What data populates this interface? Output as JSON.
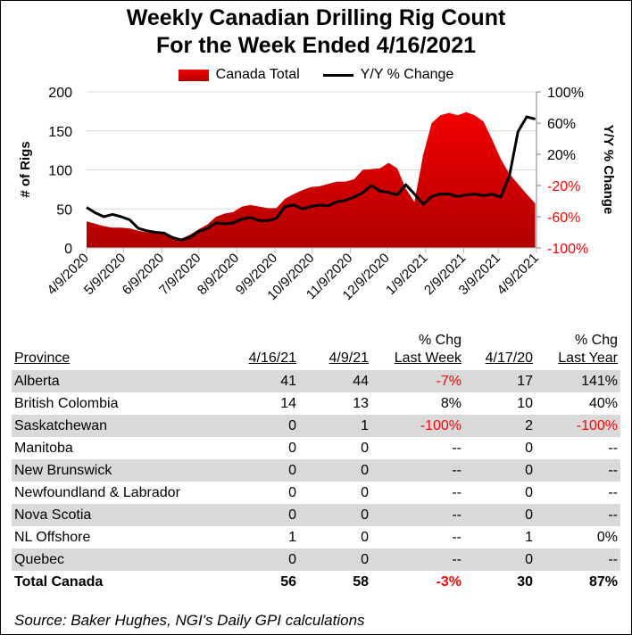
{
  "title_line1": "Weekly Canadian Drilling Rig Count",
  "title_line2": "For the Week Ended 4/16/2021",
  "chart_data": {
    "type": "area+line",
    "legend": [
      "Canada Total",
      "Y/Y % Change"
    ],
    "legend_position": "top",
    "ylabel": "# of Rigs",
    "y2label": "Y/Y % Change",
    "ylim": [
      0,
      200
    ],
    "yticks": [
      "0",
      "50",
      "100",
      "150",
      "200"
    ],
    "y2lim": [
      -100,
      100
    ],
    "y2ticks": [
      "-100%",
      "-60%",
      "-20%",
      "20%",
      "60%",
      "100%"
    ],
    "xticks": [
      "4/9/2020",
      "5/9/2020",
      "6/9/2020",
      "7/9/2020",
      "8/9/2020",
      "9/9/2020",
      "10/9/2020",
      "11/9/2020",
      "12/9/2020",
      "1/9/2021",
      "2/9/2021",
      "3/9/2021",
      "4/9/2021"
    ],
    "grid": true,
    "x": [
      "4/9/2020",
      "4/16/2020",
      "4/23/2020",
      "4/30/2020",
      "5/7/2020",
      "5/14/2020",
      "5/21/2020",
      "5/28/2020",
      "6/4/2020",
      "6/11/2020",
      "6/18/2020",
      "6/25/2020",
      "7/2/2020",
      "7/9/2020",
      "7/16/2020",
      "7/23/2020",
      "7/30/2020",
      "8/6/2020",
      "8/13/2020",
      "8/20/2020",
      "8/27/2020",
      "9/3/2020",
      "9/10/2020",
      "9/17/2020",
      "9/24/2020",
      "10/1/2020",
      "10/8/2020",
      "10/15/2020",
      "10/22/2020",
      "10/29/2020",
      "11/5/2020",
      "11/12/2020",
      "11/19/2020",
      "11/26/2020",
      "12/3/2020",
      "12/10/2020",
      "12/17/2020",
      "12/24/2020",
      "12/31/2020",
      "1/7/2021",
      "1/14/2021",
      "1/21/2021",
      "1/28/2021",
      "2/4/2021",
      "2/11/2021",
      "2/18/2021",
      "2/25/2021",
      "3/4/2021",
      "3/11/2021",
      "3/18/2021",
      "3/25/2021",
      "4/1/2021",
      "4/8/2021"
    ],
    "series": [
      {
        "name": "Canada Total",
        "type": "area",
        "color": "#d00000",
        "values": [
          34,
          31,
          28,
          26,
          26,
          25,
          22,
          20,
          19,
          18,
          15,
          12,
          17,
          24,
          30,
          40,
          44,
          46,
          53,
          55,
          53,
          51,
          51,
          63,
          69,
          74,
          78,
          79,
          82,
          85,
          85,
          88,
          100,
          101,
          102,
          109,
          102,
          76,
          59,
          119,
          160,
          170,
          173,
          170,
          174,
          170,
          162,
          139,
          114,
          95,
          82,
          69,
          57
        ]
      },
      {
        "name": "Y/Y % Change",
        "type": "line",
        "axis": "right",
        "color": "#000000",
        "values": [
          -48,
          -55,
          -60,
          -57,
          -60,
          -64,
          -75,
          -78,
          -80,
          -81,
          -87,
          -90,
          -86,
          -79,
          -75,
          -68,
          -69,
          -68,
          -63,
          -61,
          -65,
          -65,
          -62,
          -47,
          -45,
          -50,
          -47,
          -45,
          -46,
          -41,
          -39,
          -35,
          -29,
          -20,
          -27,
          -29,
          -32,
          -19,
          -31,
          -44,
          -34,
          -31,
          -31,
          -34,
          -32,
          -31,
          -33,
          -31,
          -35,
          -8,
          49,
          68,
          65
        ]
      }
    ]
  },
  "table": {
    "headers": {
      "province": "Province",
      "c1": "4/16/21",
      "c2": "4/9/21",
      "c3_top": "% Chg",
      "c3": "Last Week",
      "c4": "4/17/20",
      "c5_top": "% Chg",
      "c5": "Last Year"
    },
    "rows": [
      {
        "province": "Alberta",
        "c1": "41",
        "c2": "44",
        "c3": "-7%",
        "c4": "17",
        "c5": "141%"
      },
      {
        "province": "British Colombia",
        "c1": "14",
        "c2": "13",
        "c3": "8%",
        "c4": "10",
        "c5": "40%"
      },
      {
        "province": "Saskatchewan",
        "c1": "0",
        "c2": "1",
        "c3": "-100%",
        "c4": "2",
        "c5": "-100%"
      },
      {
        "province": "Manitoba",
        "c1": "0",
        "c2": "0",
        "c3": "--",
        "c4": "0",
        "c5": "--"
      },
      {
        "province": "New Brunswick",
        "c1": "0",
        "c2": "0",
        "c3": "--",
        "c4": "0",
        "c5": "--"
      },
      {
        "province": "Newfoundland & Labrador",
        "c1": "0",
        "c2": "0",
        "c3": "--",
        "c4": "0",
        "c5": "--"
      },
      {
        "province": "Nova Scotia",
        "c1": "0",
        "c2": "0",
        "c3": "--",
        "c4": "0",
        "c5": "--"
      },
      {
        "province": "NL Offshore",
        "c1": "1",
        "c2": "0",
        "c3": "--",
        "c4": "1",
        "c5": "0%"
      },
      {
        "province": "Quebec",
        "c1": "0",
        "c2": "0",
        "c3": "--",
        "c4": "0",
        "c5": "--"
      }
    ],
    "total": {
      "province": "Total Canada",
      "c1": "56",
      "c2": "58",
      "c3": "-3%",
      "c4": "30",
      "c5": "87%"
    }
  },
  "source": "Source: Baker Hughes, NGI's Daily GPI calculations"
}
